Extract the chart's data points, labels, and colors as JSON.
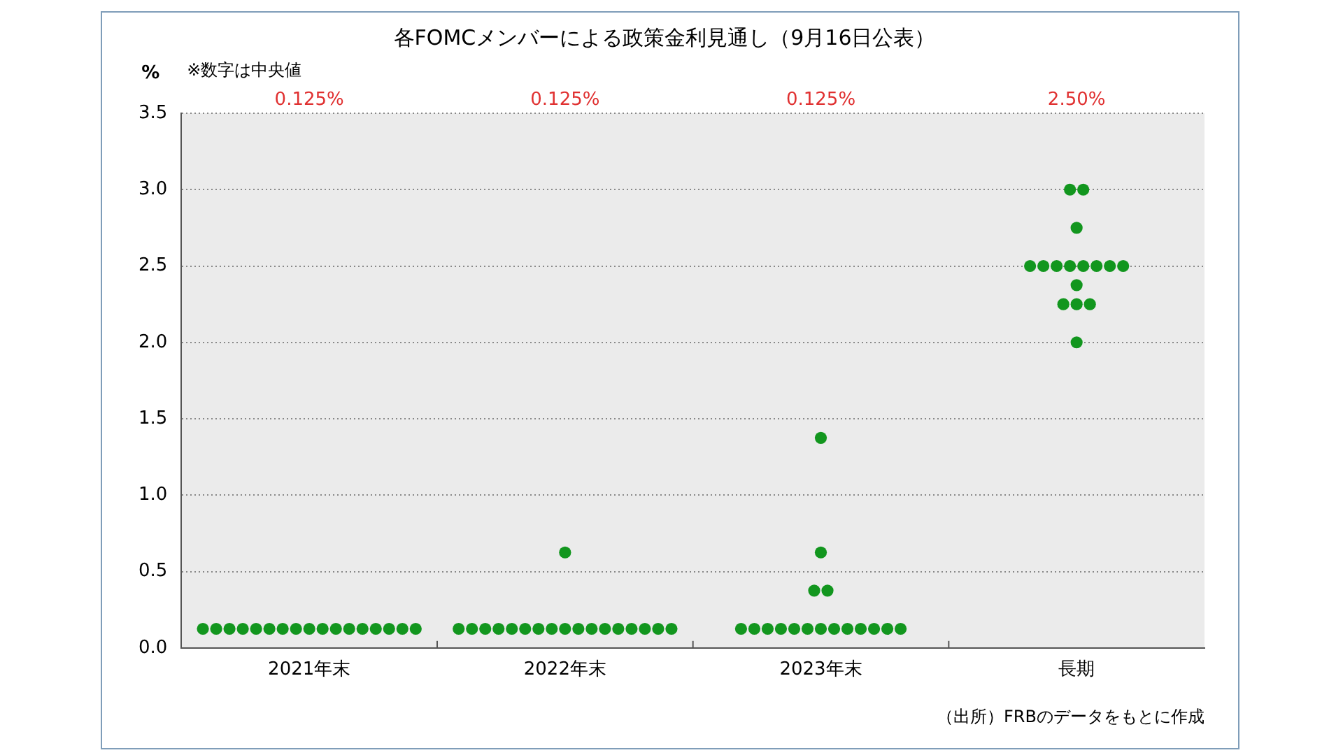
{
  "chart_data": {
    "type": "scatter",
    "title": "各FOMCメンバーによる政策金利見通し（9月16日公表）",
    "subtitle": "※数字は中央値",
    "ylabel": "%",
    "categories": [
      "2021年末",
      "2022年末",
      "2023年末",
      "長期"
    ],
    "series": [
      {
        "color": "#12961e",
        "x": [
          "2021年末",
          "2021年末",
          "2021年末",
          "2021年末",
          "2021年末",
          "2021年末",
          "2021年末",
          "2021年末",
          "2021年末",
          "2021年末",
          "2021年末",
          "2021年末",
          "2021年末",
          "2021年末",
          "2021年末",
          "2021年末",
          "2021年末",
          "2022年末",
          "2022年末",
          "2022年末",
          "2022年末",
          "2022年末",
          "2022年末",
          "2022年末",
          "2022年末",
          "2022年末",
          "2022年末",
          "2022年末",
          "2022年末",
          "2022年末",
          "2022年末",
          "2022年末",
          "2022年末",
          "2022年末",
          "2022年末",
          "2023年末",
          "2023年末",
          "2023年末",
          "2023年末",
          "2023年末",
          "2023年末",
          "2023年末",
          "2023年末",
          "2023年末",
          "2023年末",
          "2023年末",
          "2023年末",
          "2023年末",
          "2023年末",
          "2023年末",
          "2023年末",
          "2023年末",
          "長期",
          "長期",
          "長期",
          "長期",
          "長期",
          "長期",
          "長期",
          "長期",
          "長期",
          "長期",
          "長期",
          "長期",
          "長期",
          "長期",
          "長期",
          "長期"
        ],
        "values": [
          0.125,
          0.125,
          0.125,
          0.125,
          0.125,
          0.125,
          0.125,
          0.125,
          0.125,
          0.125,
          0.125,
          0.125,
          0.125,
          0.125,
          0.125,
          0.125,
          0.125,
          0.125,
          0.125,
          0.125,
          0.125,
          0.125,
          0.125,
          0.125,
          0.125,
          0.125,
          0.125,
          0.125,
          0.125,
          0.125,
          0.125,
          0.125,
          0.125,
          0.125,
          0.625,
          0.125,
          0.125,
          0.125,
          0.125,
          0.125,
          0.125,
          0.125,
          0.125,
          0.125,
          0.125,
          0.125,
          0.125,
          0.125,
          0.375,
          0.375,
          0.625,
          1.375,
          3.0,
          3.0,
          2.75,
          2.5,
          2.5,
          2.5,
          2.5,
          2.5,
          2.5,
          2.5,
          2.5,
          2.375,
          2.25,
          2.25,
          2.25,
          2.0
        ]
      }
    ],
    "ylim": [
      0,
      3.5
    ],
    "yticks": [
      {
        "value": 0,
        "label": "0.0"
      },
      {
        "value": 0.5,
        "label": "0.5"
      },
      {
        "value": 1,
        "label": "1.0"
      },
      {
        "value": 1.5,
        "label": "1.5"
      },
      {
        "value": 2,
        "label": "2.0"
      },
      {
        "value": 2.5,
        "label": "2.5"
      },
      {
        "value": 3,
        "label": "3.0"
      },
      {
        "value": 3.5,
        "label": "3.5"
      }
    ],
    "grid": "y",
    "legend": false,
    "marker": "circle",
    "annotations": [
      "0.125%",
      "0.125%",
      "0.125%",
      "2.50%",
      "（出所）FRBのデータをもとに作成"
    ]
  }
}
